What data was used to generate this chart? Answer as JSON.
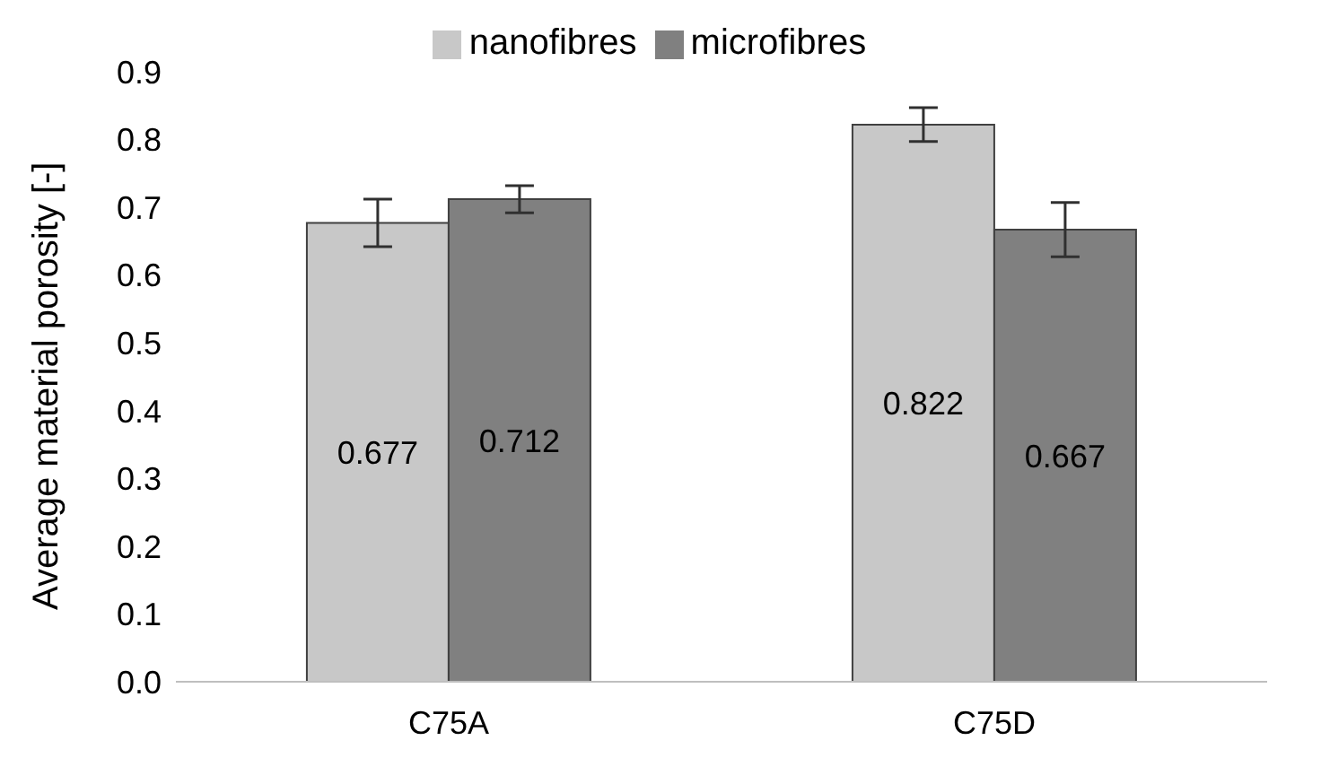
{
  "chart_data": {
    "type": "bar",
    "ylabel": "Average material porosity [-]",
    "categories": [
      "C75A",
      "C75D"
    ],
    "series": [
      {
        "name": "nanofibres",
        "color": "#c8c8c8",
        "values": [
          0.677,
          0.822
        ],
        "errors": [
          0.035,
          0.025
        ]
      },
      {
        "name": "microfibres",
        "color": "#808080",
        "values": [
          0.712,
          0.667
        ],
        "errors": [
          0.02,
          0.04
        ]
      }
    ],
    "ylim": [
      0,
      0.9
    ],
    "yticks": [
      {
        "value": 0,
        "label": "0.0"
      },
      0.1,
      0.2,
      0.3,
      0.4,
      0.5,
      0.6,
      0.7,
      0.8,
      0.9
    ],
    "data_labels": true,
    "grid": false,
    "legend": "top"
  }
}
